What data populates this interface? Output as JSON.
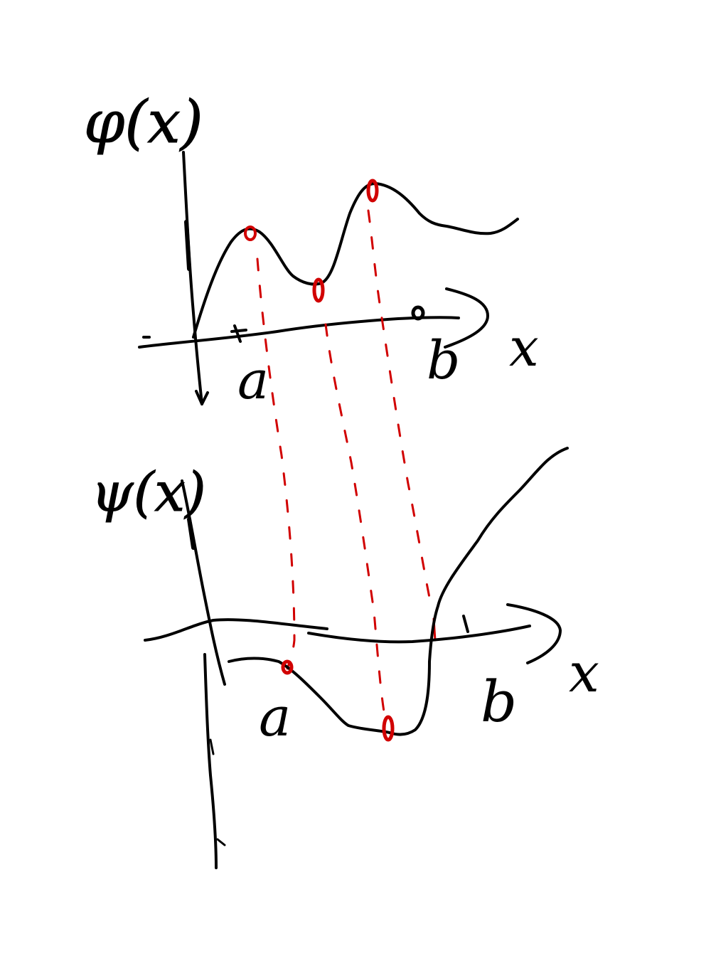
{
  "colors": {
    "ink": "#000000",
    "accent": "#d10000",
    "background": "#ffffff"
  },
  "graph_top": {
    "function_label": "φ(x)",
    "x_axis_label": "x",
    "point_a_label": "a",
    "point_b_label": "b"
  },
  "graph_bottom": {
    "function_label": "ψ(x)",
    "x_axis_label": "x",
    "point_a_label": "a",
    "point_b_label": "b"
  }
}
